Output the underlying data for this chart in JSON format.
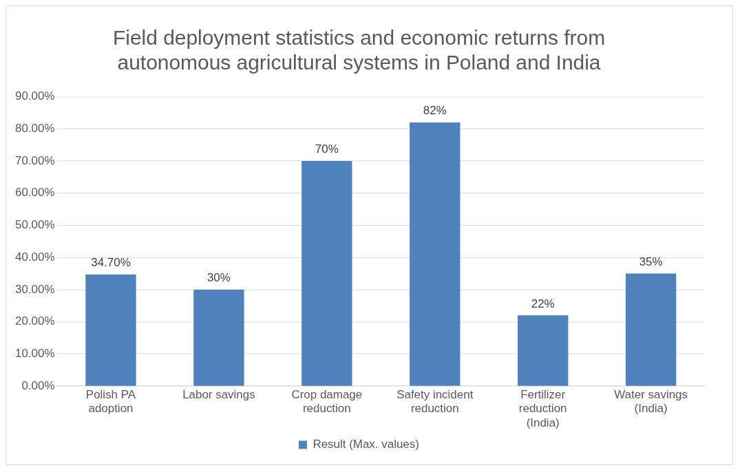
{
  "chart_data": {
    "type": "bar",
    "title": "Field deployment statistics and economic returns from autonomous agricultural systems in Poland and India",
    "categories": [
      "Polish PA adoption",
      "Labor savings",
      "Crop damage reduction",
      "Safety incident reduction",
      "Fertilizer reduction (India)",
      "Water savings (India)"
    ],
    "series": [
      {
        "name": "Result (Max. values)",
        "color": "#4f81bd",
        "values": [
          34.7,
          30,
          70,
          82,
          22,
          35
        ],
        "value_labels": [
          "34.70%",
          "30%",
          "70%",
          "82%",
          "22%",
          "35%"
        ]
      }
    ],
    "ylim": [
      0,
      90
    ],
    "yticks": [
      {
        "value": 0,
        "label": "0.00%"
      },
      {
        "value": 10,
        "label": "10.00%"
      },
      {
        "value": 20,
        "label": "20.00%"
      },
      {
        "value": 30,
        "label": "30.00%"
      },
      {
        "value": 40,
        "label": "40.00%"
      },
      {
        "value": 50,
        "label": "50.00%"
      },
      {
        "value": 60,
        "label": "60.00%"
      },
      {
        "value": 70,
        "label": "70.00%"
      },
      {
        "value": 80,
        "label": "80.00%"
      },
      {
        "value": 90,
        "label": "90.00%"
      }
    ],
    "grid": "y",
    "legend": "bottom"
  }
}
